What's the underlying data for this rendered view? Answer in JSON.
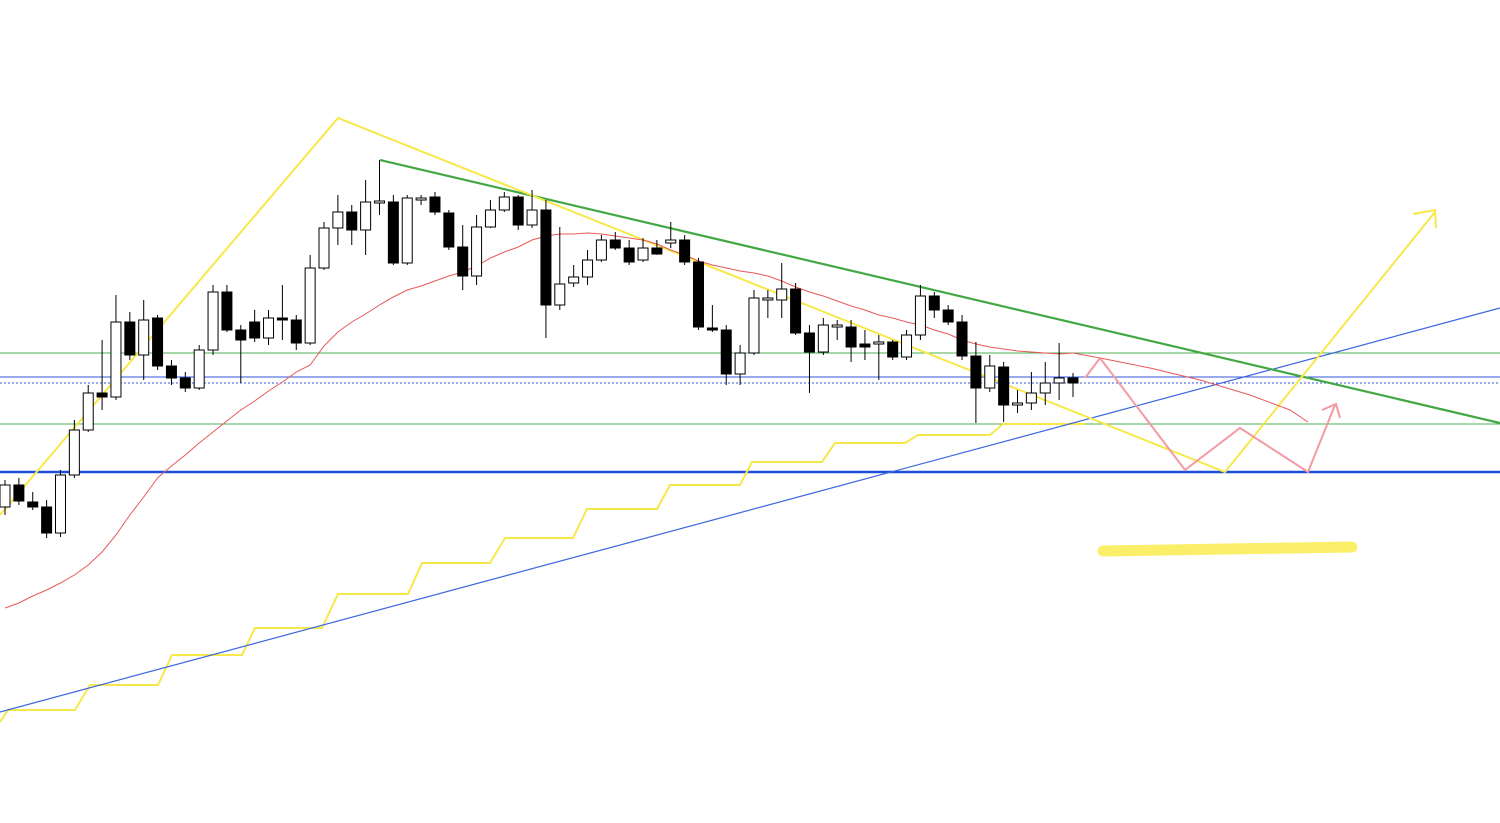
{
  "chart_data": {
    "type": "candlestick",
    "ylim": [
      0,
      823
    ],
    "open": [
      316,
      338,
      321,
      316,
      290,
      348,
      393,
      430,
      426,
      501,
      468,
      505,
      457,
      445,
      435,
      473,
      531,
      493,
      501,
      485,
      505,
      503,
      480,
      555,
      595,
      611,
      593,
      620,
      621,
      560,
      623,
      626,
      610,
      576,
      547,
      596,
      613,
      626,
      598,
      613,
      518,
      540,
      546,
      563,
      583,
      575,
      563,
      575,
      580,
      583,
      561,
      495,
      493,
      449,
      470,
      523,
      523,
      534,
      490,
      471,
      496,
      496,
      479,
      479,
      481,
      466,
      488,
      527,
      513,
      501,
      467,
      435,
      456,
      418,
      420,
      430,
      440,
      445
    ],
    "high": [
      343,
      345,
      331,
      323,
      353,
      403,
      438,
      483,
      528,
      511,
      523,
      508,
      463,
      451,
      478,
      538,
      538,
      498,
      513,
      513,
      538,
      508,
      568,
      601,
      628,
      618,
      643,
      663,
      628,
      628,
      628,
      631,
      613,
      598,
      608,
      623,
      631,
      628,
      633,
      623,
      596,
      558,
      573,
      588,
      591,
      583,
      585,
      583,
      601,
      588,
      565,
      518,
      498,
      478,
      533,
      533,
      560,
      540,
      498,
      505,
      503,
      503,
      493,
      488,
      483,
      493,
      538,
      531,
      518,
      508,
      481,
      468,
      461,
      433,
      451,
      461,
      480,
      450
    ],
    "low": [
      308,
      318,
      313,
      285,
      286,
      345,
      391,
      413,
      423,
      463,
      443,
      453,
      438,
      431,
      433,
      468,
      491,
      440,
      481,
      478,
      483,
      473,
      478,
      553,
      578,
      578,
      568,
      608,
      558,
      558,
      618,
      608,
      573,
      533,
      538,
      595,
      611,
      593,
      595,
      485,
      513,
      536,
      538,
      561,
      573,
      558,
      561,
      568,
      575,
      558,
      493,
      491,
      438,
      438,
      468,
      505,
      505,
      488,
      430,
      468,
      483,
      461,
      463,
      443,
      463,
      463,
      483,
      505,
      498,
      463,
      400,
      431,
      401,
      410,
      413,
      418,
      423,
      426
    ],
    "close": [
      338,
      322,
      316,
      290,
      348,
      393,
      430,
      426,
      501,
      468,
      503,
      457,
      445,
      435,
      473,
      531,
      493,
      483,
      485,
      505,
      503,
      480,
      555,
      595,
      611,
      593,
      621,
      622,
      560,
      625,
      625,
      611,
      576,
      547,
      596,
      613,
      626,
      598,
      613,
      518,
      539,
      546,
      563,
      583,
      575,
      561,
      575,
      569,
      583,
      561,
      496,
      493,
      449,
      470,
      525,
      525,
      534,
      490,
      471,
      498,
      498,
      476,
      476,
      481,
      466,
      488,
      527,
      513,
      501,
      467,
      435,
      457,
      418,
      420,
      430,
      440,
      445,
      440
    ],
    "up_color": "#ffffff",
    "down_color": "#000000",
    "wick_color": "#000000",
    "ma": {
      "color": "#e8585a",
      "values": [
        215,
        220,
        227,
        233,
        240,
        248,
        258,
        271,
        288,
        308,
        326,
        345,
        357,
        368,
        380,
        391,
        402,
        413,
        422,
        432,
        441,
        451,
        458,
        477,
        491,
        501,
        509,
        518,
        526,
        533,
        537,
        542,
        547,
        551,
        557,
        565,
        571,
        576,
        583,
        587,
        589,
        589,
        590,
        589,
        587,
        585,
        583,
        579,
        573,
        568,
        562,
        558,
        555,
        552,
        550,
        547,
        542,
        536,
        531,
        527,
        522,
        517,
        513,
        508,
        505,
        501,
        498,
        493,
        489,
        483,
        479,
        476,
        474,
        472,
        471,
        470,
        469,
        470
      ]
    },
    "levels": [
      {
        "value": 470,
        "color": "#4caf50",
        "width": 1,
        "style": "solid"
      },
      {
        "value": 446,
        "color": "#3355dd",
        "width": 1,
        "style": "solid"
      },
      {
        "value": 440,
        "color": "#3355dd",
        "width": 1,
        "style": "dotted"
      },
      {
        "value": 399,
        "color": "#4caf50",
        "width": 1,
        "style": "solid"
      },
      {
        "value": 351,
        "color": "#1f4fd8",
        "width": 2.5,
        "style": "solid"
      }
    ]
  }
}
